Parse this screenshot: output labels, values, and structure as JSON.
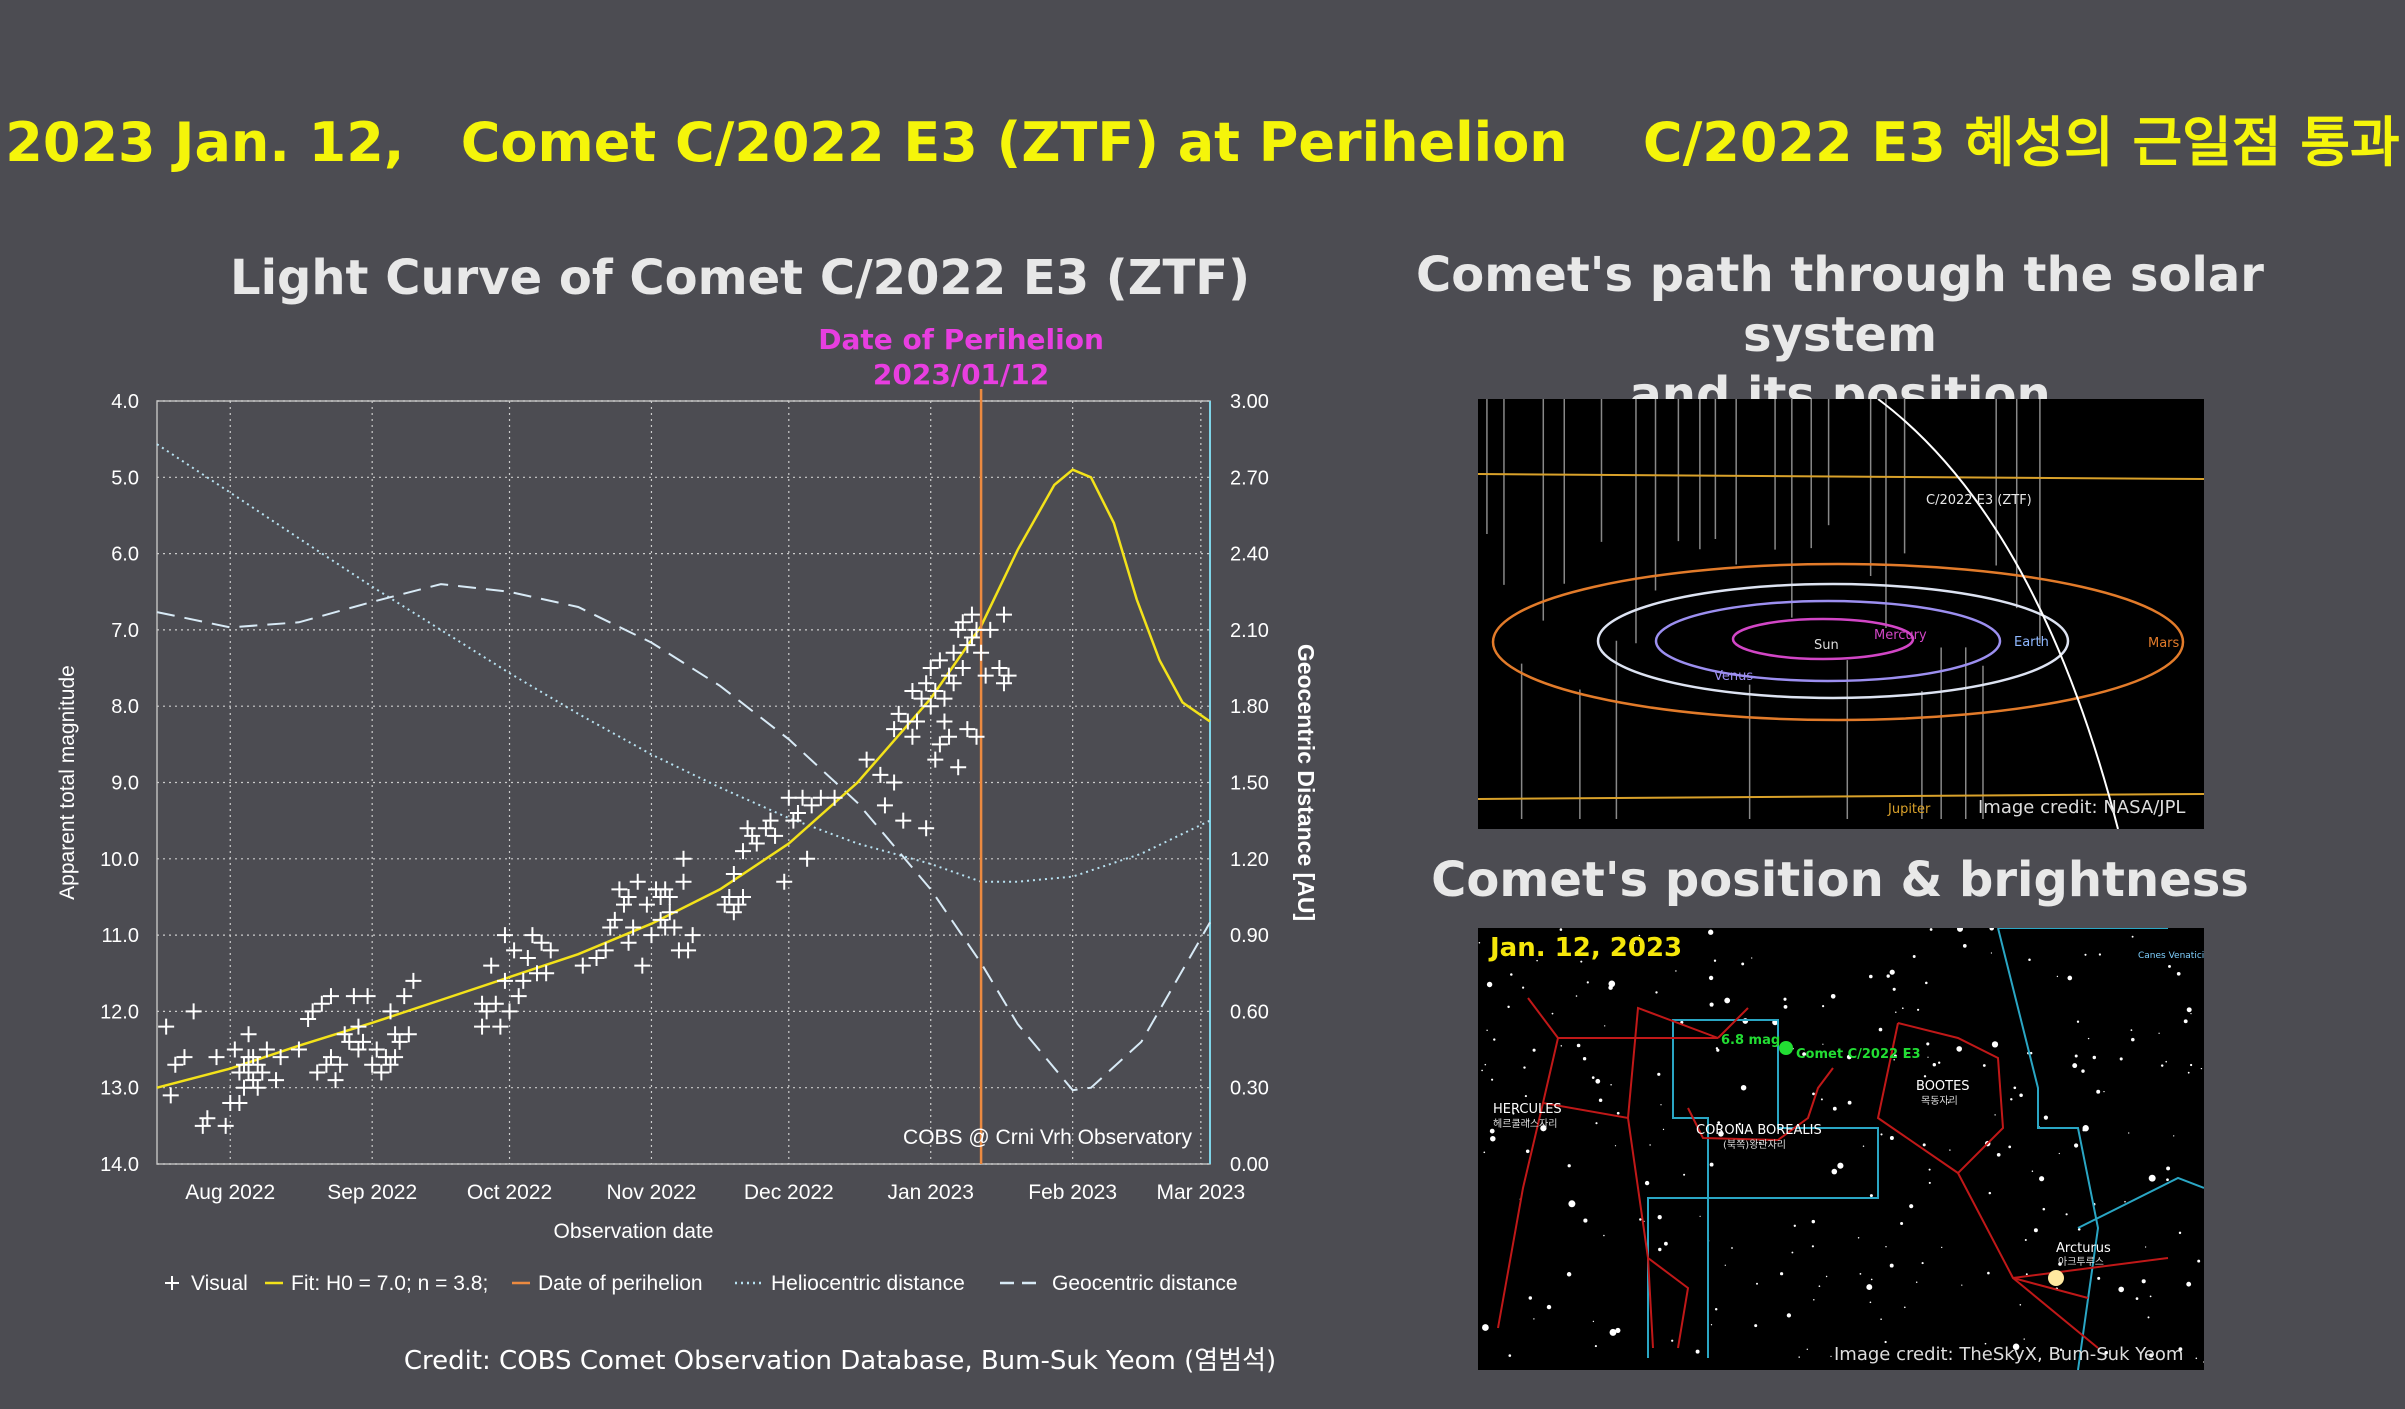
{
  "header": {
    "title": "2023 Jan. 12,   Comet C/2022 E3 (ZTF) at Perihelion    C/2022 E3 혜성의 근일점 통과"
  },
  "light_curve": {
    "section_title": "Light Curve of Comet C/2022 E3 (ZTF)",
    "perihelion_label_1": "Date of Perihelion",
    "perihelion_label_2": "2023/01/12",
    "watermark": "COBS @ Crni Vrh Observatory",
    "credit": "Credit: COBS Comet Observation Database, Bum-Suk Yeom (염범석)"
  },
  "solar_path": {
    "section_title_line1": "Comet's path through the solar system",
    "section_title_line2": "and its position",
    "comet_label": "C/2022 E3 (ZTF)",
    "labels": {
      "sun": "Sun",
      "mercury": "Mercury",
      "venus": "Venus",
      "earth": "Earth",
      "mars": "Mars",
      "jupiter": "Jupiter"
    },
    "credit": "Image credit: NASA/JPL"
  },
  "sky_view": {
    "section_title": "Comet's position & brightness",
    "date": "Jan. 12, 2023",
    "mag_label": "6.8 mag",
    "comet_label": "Comet C/2022 E3",
    "constellations": {
      "hercules": "HERCULES",
      "hercules_ko": "헤르쿨레스자리",
      "corona": "CORONA BOREALIS",
      "corona_ko": "(북쪽)왕관자리",
      "bootes": "BOOTES",
      "bootes_ko": "목동자리",
      "canes": "Canes Venatici"
    },
    "star_label": "Arcturus",
    "star_label_ko": "아크투루스",
    "credit": "Image credit: TheSkyX, Bum-Suk Yeom"
  },
  "chart_data": {
    "type": "scatter",
    "title": "Light Curve of Comet C/2022 E3 (ZTF)",
    "xlabel": "Observation date",
    "ylabel": "Apparent total magnitude",
    "y2label": "Geocentric Distance [AU]",
    "x_tick_labels": [
      "Aug 2022",
      "Sep 2022",
      "Oct 2022",
      "Nov 2022",
      "Dec 2022",
      "Jan 2023",
      "Feb 2023",
      "Mar 2023"
    ],
    "x_tick_dates": [
      "2022-08-01",
      "2022-09-01",
      "2022-10-01",
      "2022-11-01",
      "2022-12-01",
      "2023-01-01",
      "2023-02-01",
      "2023-03-01"
    ],
    "xlim": [
      "2022-07-16",
      "2023-03-03"
    ],
    "ylim": [
      14.0,
      4.0
    ],
    "y_ticks": [
      "4.0",
      "5.0",
      "6.0",
      "7.0",
      "8.0",
      "9.0",
      "10.0",
      "11.0",
      "12.0",
      "13.0",
      "14.0"
    ],
    "y2lim": [
      0.0,
      3.0
    ],
    "y2_ticks": [
      "0.00",
      "0.30",
      "0.60",
      "0.90",
      "1.20",
      "1.50",
      "1.80",
      "2.10",
      "2.40",
      "2.70",
      "3.00"
    ],
    "perihelion_date": "2023-01-12",
    "grid": true,
    "legend": [
      {
        "symbol": "+",
        "label": "Visual"
      },
      {
        "symbol": "—",
        "label": "Fit: H0 = 7.0; n = 3.8;"
      },
      {
        "symbol": "—",
        "label": "Date of perihelion"
      },
      {
        "symbol": "----",
        "label": "Heliocentric distance"
      },
      {
        "symbol": "— —",
        "label": "Geocentric distance"
      }
    ],
    "legend_position": "bottom",
    "series": [
      {
        "name": "Visual",
        "points": [
          [
            "2022-07-18",
            12.2
          ],
          [
            "2022-07-19",
            13.1
          ],
          [
            "2022-07-20",
            12.7
          ],
          [
            "2022-07-22",
            12.6
          ],
          [
            "2022-07-24",
            12.0
          ],
          [
            "2022-07-26",
            13.5
          ],
          [
            "2022-07-27",
            13.4
          ],
          [
            "2022-07-29",
            12.6
          ],
          [
            "2022-07-31",
            13.5
          ],
          [
            "2022-08-01",
            13.2
          ],
          [
            "2022-08-02",
            12.5
          ],
          [
            "2022-08-03",
            13.2
          ],
          [
            "2022-08-03",
            12.8
          ],
          [
            "2022-08-04",
            12.7
          ],
          [
            "2022-08-04",
            13.0
          ],
          [
            "2022-08-05",
            12.6
          ],
          [
            "2022-08-05",
            12.3
          ],
          [
            "2022-08-05",
            12.8
          ],
          [
            "2022-08-06",
            12.9
          ],
          [
            "2022-08-06",
            12.6
          ],
          [
            "2022-08-07",
            13.0
          ],
          [
            "2022-08-07",
            12.7
          ],
          [
            "2022-08-08",
            12.8
          ],
          [
            "2022-08-09",
            12.5
          ],
          [
            "2022-08-11",
            12.9
          ],
          [
            "2022-08-12",
            12.6
          ],
          [
            "2022-08-16",
            12.5
          ],
          [
            "2022-08-18",
            12.1
          ],
          [
            "2022-08-19",
            12.0
          ],
          [
            "2022-08-20",
            12.8
          ],
          [
            "2022-08-21",
            11.9
          ],
          [
            "2022-08-22",
            12.7
          ],
          [
            "2022-08-23",
            12.6
          ],
          [
            "2022-08-23",
            11.8
          ],
          [
            "2022-08-24",
            12.9
          ],
          [
            "2022-08-25",
            12.7
          ],
          [
            "2022-08-26",
            12.3
          ],
          [
            "2022-08-27",
            12.4
          ],
          [
            "2022-08-28",
            11.8
          ],
          [
            "2022-08-29",
            12.5
          ],
          [
            "2022-08-29",
            12.2
          ],
          [
            "2022-08-30",
            12.4
          ],
          [
            "2022-08-31",
            11.8
          ],
          [
            "2022-09-01",
            12.7
          ],
          [
            "2022-09-02",
            12.5
          ],
          [
            "2022-09-03",
            12.8
          ],
          [
            "2022-09-04",
            12.6
          ],
          [
            "2022-09-05",
            12.0
          ],
          [
            "2022-09-05",
            12.7
          ],
          [
            "2022-09-06",
            12.6
          ],
          [
            "2022-09-06",
            12.3
          ],
          [
            "2022-09-07",
            12.4
          ],
          [
            "2022-09-08",
            11.8
          ],
          [
            "2022-09-09",
            12.3
          ],
          [
            "2022-09-10",
            11.6
          ],
          [
            "2022-09-25",
            12.2
          ],
          [
            "2022-09-25",
            11.9
          ],
          [
            "2022-09-26",
            12.0
          ],
          [
            "2022-09-27",
            11.4
          ],
          [
            "2022-09-28",
            11.9
          ],
          [
            "2022-09-29",
            12.2
          ],
          [
            "2022-09-30",
            11.6
          ],
          [
            "2022-09-30",
            11.0
          ],
          [
            "2022-10-01",
            12.0
          ],
          [
            "2022-10-02",
            11.2
          ],
          [
            "2022-10-03",
            11.8
          ],
          [
            "2022-10-04",
            11.6
          ],
          [
            "2022-10-05",
            11.3
          ],
          [
            "2022-10-06",
            11.0
          ],
          [
            "2022-10-07",
            11.5
          ],
          [
            "2022-10-08",
            11.1
          ],
          [
            "2022-10-09",
            11.5
          ],
          [
            "2022-10-10",
            11.2
          ],
          [
            "2022-10-17",
            11.4
          ],
          [
            "2022-10-20",
            11.3
          ],
          [
            "2022-10-22",
            11.2
          ],
          [
            "2022-10-23",
            10.9
          ],
          [
            "2022-10-24",
            10.8
          ],
          [
            "2022-10-25",
            10.4
          ],
          [
            "2022-10-26",
            10.6
          ],
          [
            "2022-10-27",
            11.1
          ],
          [
            "2022-10-27",
            10.5
          ],
          [
            "2022-10-28",
            10.9
          ],
          [
            "2022-10-29",
            10.3
          ],
          [
            "2022-10-30",
            11.4
          ],
          [
            "2022-10-31",
            10.6
          ],
          [
            "2022-11-01",
            11.0
          ],
          [
            "2022-11-02",
            10.4
          ],
          [
            "2022-11-03",
            10.8
          ],
          [
            "2022-11-03",
            10.5
          ],
          [
            "2022-11-04",
            10.9
          ],
          [
            "2022-11-04",
            10.4
          ],
          [
            "2022-11-05",
            10.7
          ],
          [
            "2022-11-05",
            10.5
          ],
          [
            "2022-11-06",
            10.9
          ],
          [
            "2022-11-07",
            11.2
          ],
          [
            "2022-11-08",
            10.3
          ],
          [
            "2022-11-08",
            10.0
          ],
          [
            "2022-11-09",
            11.2
          ],
          [
            "2022-11-10",
            11.0
          ],
          [
            "2022-11-17",
            10.6
          ],
          [
            "2022-11-18",
            10.5
          ],
          [
            "2022-11-19",
            10.7
          ],
          [
            "2022-11-19",
            10.2
          ],
          [
            "2022-11-20",
            10.6
          ],
          [
            "2022-11-21",
            10.5
          ],
          [
            "2022-11-21",
            9.9
          ],
          [
            "2022-11-22",
            9.6
          ],
          [
            "2022-11-23",
            9.7
          ],
          [
            "2022-11-24",
            9.8
          ],
          [
            "2022-11-26",
            9.6
          ],
          [
            "2022-11-27",
            9.5
          ],
          [
            "2022-11-28",
            9.7
          ],
          [
            "2022-11-30",
            10.3
          ],
          [
            "2022-12-01",
            9.2
          ],
          [
            "2022-12-02",
            9.5
          ],
          [
            "2022-12-03",
            9.4
          ],
          [
            "2022-12-04",
            9.2
          ],
          [
            "2022-12-05",
            10.0
          ],
          [
            "2022-12-06",
            9.3
          ],
          [
            "2022-12-08",
            9.2
          ],
          [
            "2022-12-11",
            9.2
          ],
          [
            "2022-12-18",
            8.7
          ],
          [
            "2022-12-21",
            8.9
          ],
          [
            "2022-12-22",
            9.3
          ],
          [
            "2022-12-24",
            9.0
          ],
          [
            "2022-12-24",
            8.3
          ],
          [
            "2022-12-25",
            8.1
          ],
          [
            "2022-12-26",
            9.5
          ],
          [
            "2022-12-27",
            8.2
          ],
          [
            "2022-12-28",
            7.8
          ],
          [
            "2022-12-28",
            8.4
          ],
          [
            "2022-12-29",
            8.2
          ],
          [
            "2022-12-30",
            7.9
          ],
          [
            "2022-12-31",
            7.7
          ],
          [
            "2022-12-31",
            9.6
          ],
          [
            "2023-01-01",
            8.0
          ],
          [
            "2023-01-01",
            7.5
          ],
          [
            "2023-01-02",
            8.7
          ],
          [
            "2023-01-02",
            7.8
          ],
          [
            "2023-01-03",
            8.5
          ],
          [
            "2023-01-03",
            7.4
          ],
          [
            "2023-01-04",
            8.2
          ],
          [
            "2023-01-04",
            7.9
          ],
          [
            "2023-01-05",
            7.6
          ],
          [
            "2023-01-05",
            8.4
          ],
          [
            "2023-01-06",
            7.3
          ],
          [
            "2023-01-06",
            7.7
          ],
          [
            "2023-01-07",
            8.8
          ],
          [
            "2023-01-07",
            7.0
          ],
          [
            "2023-01-08",
            7.5
          ],
          [
            "2023-01-08",
            6.9
          ],
          [
            "2023-01-09",
            7.2
          ],
          [
            "2023-01-09",
            8.3
          ],
          [
            "2023-01-10",
            6.8
          ],
          [
            "2023-01-10",
            7.1
          ],
          [
            "2023-01-11",
            8.4
          ],
          [
            "2023-01-11",
            7.0
          ],
          [
            "2023-01-12",
            7.3
          ],
          [
            "2023-01-13",
            7.6
          ],
          [
            "2023-01-14",
            7.0
          ],
          [
            "2023-01-16",
            7.5
          ],
          [
            "2023-01-17",
            6.8
          ],
          [
            "2023-01-17",
            7.7
          ],
          [
            "2023-01-18",
            7.6
          ]
        ]
      },
      {
        "name": "Fit: H0 = 7.0; n = 3.8;",
        "points": [
          [
            "2022-07-16",
            13.0
          ],
          [
            "2022-08-01",
            12.75
          ],
          [
            "2022-08-16",
            12.45
          ],
          [
            "2022-09-01",
            12.15
          ],
          [
            "2022-09-16",
            11.85
          ],
          [
            "2022-10-01",
            11.55
          ],
          [
            "2022-10-16",
            11.25
          ],
          [
            "2022-11-01",
            10.85
          ],
          [
            "2022-11-16",
            10.4
          ],
          [
            "2022-12-01",
            9.8
          ],
          [
            "2022-12-16",
            9.0
          ],
          [
            "2023-01-01",
            7.9
          ],
          [
            "2023-01-12",
            6.95
          ],
          [
            "2023-01-20",
            5.95
          ],
          [
            "2023-01-28",
            5.1
          ],
          [
            "2023-02-01",
            4.9
          ],
          [
            "2023-02-05",
            5.0
          ],
          [
            "2023-02-10",
            5.6
          ],
          [
            "2023-02-15",
            6.6
          ],
          [
            "2023-02-20",
            7.4
          ],
          [
            "2023-02-25",
            7.95
          ],
          [
            "2023-03-03",
            8.2
          ]
        ]
      },
      {
        "name": "Heliocentric distance",
        "points": [
          [
            "2022-07-16",
            2.83
          ],
          [
            "2022-08-01",
            2.64
          ],
          [
            "2022-08-16",
            2.46
          ],
          [
            "2022-09-01",
            2.27
          ],
          [
            "2022-09-16",
            2.1
          ],
          [
            "2022-10-01",
            1.93
          ],
          [
            "2022-10-16",
            1.77
          ],
          [
            "2022-11-01",
            1.61
          ],
          [
            "2022-11-16",
            1.48
          ],
          [
            "2022-12-01",
            1.36
          ],
          [
            "2022-12-16",
            1.26
          ],
          [
            "2023-01-01",
            1.18
          ],
          [
            "2023-01-12",
            1.11
          ],
          [
            "2023-01-20",
            1.11
          ],
          [
            "2023-02-01",
            1.13
          ],
          [
            "2023-02-16",
            1.22
          ],
          [
            "2023-03-03",
            1.35
          ]
        ]
      },
      {
        "name": "Geocentric distance",
        "points": [
          [
            "2022-07-16",
            2.17
          ],
          [
            "2022-08-01",
            2.11
          ],
          [
            "2022-08-16",
            2.13
          ],
          [
            "2022-09-01",
            2.21
          ],
          [
            "2022-09-16",
            2.28
          ],
          [
            "2022-10-01",
            2.25
          ],
          [
            "2022-10-16",
            2.19
          ],
          [
            "2022-11-01",
            2.05
          ],
          [
            "2022-11-16",
            1.88
          ],
          [
            "2022-12-01",
            1.67
          ],
          [
            "2022-12-16",
            1.42
          ],
          [
            "2023-01-01",
            1.08
          ],
          [
            "2023-01-12",
            0.79
          ],
          [
            "2023-01-20",
            0.55
          ],
          [
            "2023-02-01",
            0.29
          ],
          [
            "2023-02-05",
            0.3
          ],
          [
            "2023-02-16",
            0.48
          ],
          [
            "2023-03-03",
            0.95
          ]
        ]
      }
    ]
  }
}
